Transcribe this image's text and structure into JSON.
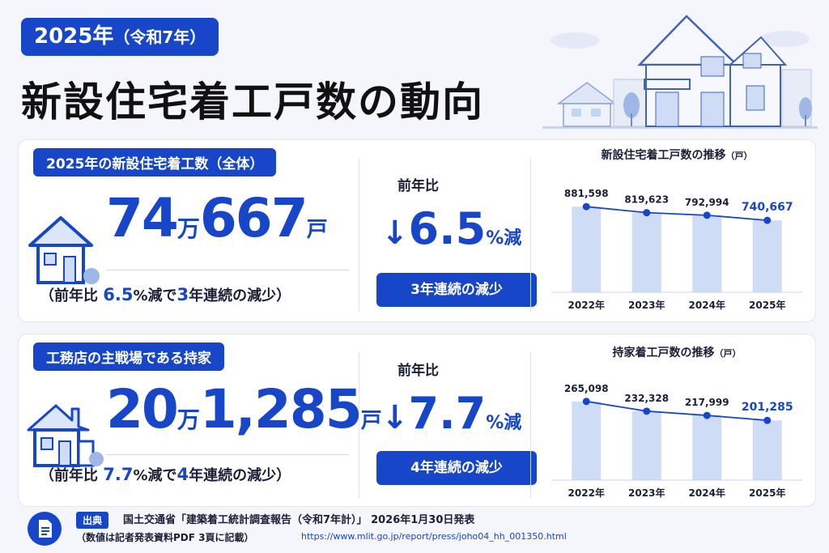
{
  "header": {
    "year": "2025年",
    "year_sub": "（令和7年）",
    "title": "新設住宅着工戸数の動向"
  },
  "section1": {
    "heading": "2025年の新設住宅着工数（全体）",
    "big_man_num": "74",
    "big_man_unit": "万",
    "big_rest_num": "667",
    "big_unit": "戸",
    "note_pre": "（前年比",
    "note_pct": "6.5",
    "note_pct_unit": "%減で",
    "note_years": "3",
    "note_post": "年連続の減少）",
    "yoy_label": "前年比",
    "yoy_arrow": "↓",
    "yoy_value": "6.5",
    "yoy_unit": "%減",
    "streak": "3年連続の減少"
  },
  "section2": {
    "heading": "工務店の主戦場である持家",
    "big_man_num": "20",
    "big_man_unit": "万",
    "big_rest_num": "1,285",
    "big_unit": "戸",
    "note_pre": "（前年比",
    "note_pct": "7.7",
    "note_pct_unit": "%減で",
    "note_years": "4",
    "note_post": "年連続の減少）",
    "yoy_label": "前年比",
    "yoy_arrow": "↓",
    "yoy_value": "7.7",
    "yoy_unit": "%減",
    "streak": "4年連続の減少"
  },
  "chart_data": [
    {
      "type": "bar",
      "title": "新設住宅着工戸数の推移",
      "unit": "（戸）",
      "categories": [
        "2022年",
        "2023年",
        "2024年",
        "2025年"
      ],
      "values": [
        881598,
        819623,
        792994,
        740667
      ],
      "labels": [
        "881,598",
        "819,623",
        "792,994",
        "740,667"
      ],
      "trend_line": true,
      "ylim": [
        0,
        1000000
      ],
      "bar_color": "#cfdcf6",
      "line_color": "#1746c9"
    },
    {
      "type": "bar",
      "title": "持家着工戸数の推移",
      "unit": "（戸）",
      "categories": [
        "2022年",
        "2023年",
        "2024年",
        "2025年"
      ],
      "values": [
        265098,
        232328,
        217999,
        201285
      ],
      "labels": [
        "265,098",
        "232,328",
        "217,999",
        "201,285"
      ],
      "trend_line": true,
      "ylim": [
        0,
        300000
      ],
      "bar_color": "#cfdcf6",
      "line_color": "#1746c9"
    }
  ],
  "footer": {
    "badge": "出典",
    "source": "国土交通省「建築着工統計調査報告（令和7年計）」 2026年1月30日発表",
    "note": "（数値は記者発表資料PDF 3頁に記載）",
    "url": "https://www.mlit.go.jp/report/press/joho04_hh_001350.html"
  },
  "colors": {
    "accent": "#1746c9",
    "bar": "#cfdcf6",
    "background": "#f4f6fb"
  }
}
